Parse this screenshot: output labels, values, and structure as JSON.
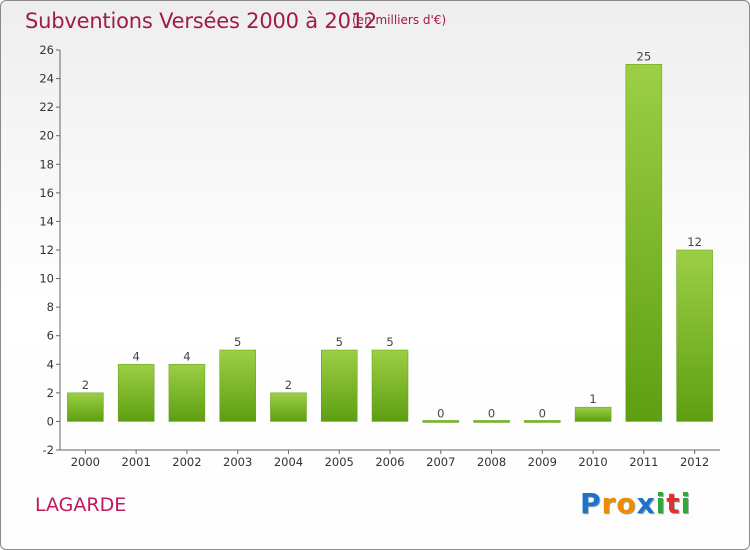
{
  "header": {
    "title": "Subventions Versées 2000 à 2012",
    "subtitle": "(en milliers d'€)"
  },
  "footer": {
    "commune": "LAGARDE",
    "logo": "Proxiti",
    "logo_letters": [
      {
        "ch": "P",
        "color": "#1e73c8"
      },
      {
        "ch": "r",
        "color": "#f08a00"
      },
      {
        "ch": "o",
        "color": "#f08a00"
      },
      {
        "ch": "x",
        "color": "#1e73c8"
      },
      {
        "ch": "i",
        "color": "#2ea836"
      },
      {
        "ch": "t",
        "color": "#e0302a"
      },
      {
        "ch": "i",
        "color": "#2ea836"
      }
    ]
  },
  "colors": {
    "bar_light": "#9ccf45",
    "bar_dark": "#5e9e12",
    "title": "#a01a4a",
    "commune": "#c2185b"
  },
  "chart_data": {
    "type": "bar",
    "title": "Subventions Versées 2000 à 2012",
    "subtitle": "(en milliers d'€)",
    "xlabel": "",
    "ylabel": "",
    "categories": [
      "2000",
      "2001",
      "2002",
      "2003",
      "2004",
      "2005",
      "2006",
      "2007",
      "2008",
      "2009",
      "2010",
      "2011",
      "2012"
    ],
    "values": [
      2,
      4,
      4,
      5,
      2,
      5,
      5,
      0,
      0,
      0,
      1,
      25,
      12
    ],
    "ylim": [
      -2,
      26
    ],
    "yticks": [
      -2,
      0,
      2,
      4,
      6,
      8,
      10,
      12,
      14,
      16,
      18,
      20,
      22,
      24,
      26
    ],
    "grid": false,
    "legend": "none"
  }
}
